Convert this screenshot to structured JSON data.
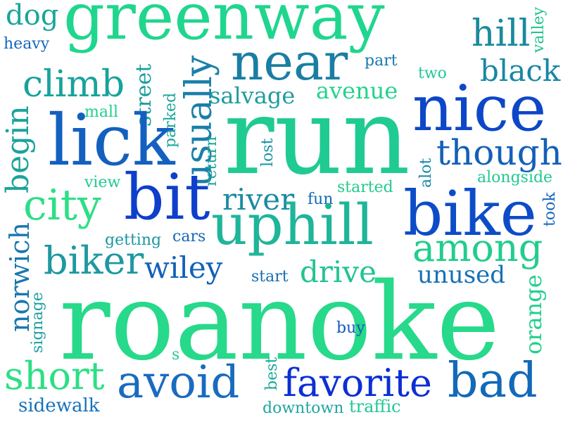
{
  "words": {
    "greenway": "greenway",
    "dog": "dog",
    "heavy": "heavy",
    "hill": "hill",
    "valley": "valley",
    "near": "near",
    "part": "part",
    "black": "black",
    "two": "two",
    "climb": "climb",
    "usually": "usually",
    "salvage": "salvage",
    "avenue": "avenue",
    "nice": "nice",
    "street": "street",
    "mall": "mall",
    "begin": "begin",
    "lick": "lick",
    "run": "run",
    "parked": "parked",
    "though": "though",
    "return": "return",
    "lost": "lost",
    "alot": "alot",
    "alongside": "alongside",
    "view": "view",
    "started": "started",
    "bit": "bit",
    "city": "city",
    "river": "river",
    "fun": "fun",
    "bike": "bike",
    "took": "took",
    "uphill": "uphill",
    "cars": "cars",
    "getting": "getting",
    "among": "among",
    "norwich": "norwich",
    "biker": "biker",
    "wiley": "wiley",
    "drive": "drive",
    "start": "start",
    "unused": "unused",
    "signage": "signage",
    "orange": "orange",
    "roanoke": "roanoke",
    "buy": "buy",
    "s": "s",
    "short": "short",
    "avoid": "avoid",
    "best": "best",
    "favorite": "favorite",
    "bad": "bad",
    "sidewalk": "sidewalk",
    "downtown": "downtown",
    "traffic": "traffic"
  },
  "colors": {
    "greenway": "#20d68e",
    "dog": "#1aa59b",
    "heavy": "#1565c0",
    "hill": "#1a8a9f",
    "valley": "#22c48d",
    "near": "#1a7ea3",
    "part": "#1579b0",
    "black": "#1787a3",
    "two": "#22c79a",
    "climb": "#17a39b",
    "usually": "#1a7fa8",
    "salvage": "#1f9b9d",
    "avenue": "#22d38b",
    "nice": "#0d47c8",
    "street": "#1a9d9e",
    "mall": "#22cf8c",
    "begin": "#1ba39b",
    "lick": "#1460c0",
    "run": "#1fcb92",
    "parked": "#1ba59a",
    "though": "#1460b8",
    "return": "#1ba49a",
    "lost": "#1693a3",
    "alot": "#1688a8",
    "alongside": "#22c98f",
    "view": "#22c993",
    "started": "#22cc8d",
    "bit": "#0d3fcc",
    "city": "#2ddf85",
    "river": "#1a8aa3",
    "fun": "#1168b8",
    "bike": "#0d4cc9",
    "took": "#1565be",
    "uphill": "#1fb59a",
    "cars": "#1368b5",
    "getting": "#1a95a2",
    "among": "#22cd8d",
    "norwich": "#1a78ad",
    "biker": "#1e98a0",
    "wiley": "#1361b8",
    "drive": "#22c393",
    "start": "#166fb5",
    "unused": "#1670b6",
    "signage": "#1d9fa0",
    "orange": "#22cf8c",
    "roanoke": "#27d98a",
    "buy": "#1158bb",
    "s": "#24c894",
    "short": "#2ddf85",
    "avoid": "#1a6bbf",
    "best": "#1aa69b",
    "favorite": "#0b2fd4",
    "bad": "#1269b8",
    "sidewalk": "#1572bc",
    "downtown": "#1fa6a0",
    "traffic": "#22c795"
  }
}
